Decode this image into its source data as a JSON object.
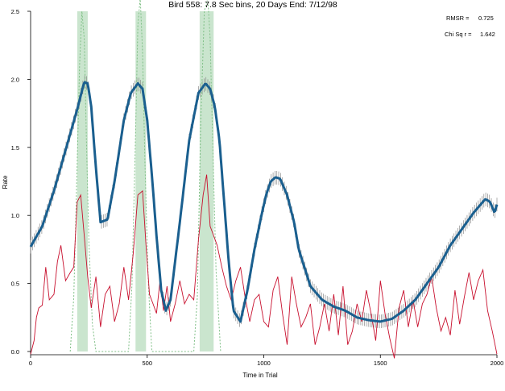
{
  "chart_data": {
    "type": "line",
    "title": "Bird 558: 7.8 Sec bins, 20 Days End: 7/12/98",
    "xlabel": "Time in Trial",
    "ylabel": "Rate",
    "xlim": [
      0,
      2000
    ],
    "ylim": [
      0,
      2.5
    ],
    "x_ticks": [
      {
        "value": 0,
        "label": "0"
      },
      {
        "value": 500,
        "label": "500"
      },
      {
        "value": 1000,
        "label": "1000"
      },
      {
        "value": 1500,
        "label": "1500"
      },
      {
        "value": 2000,
        "label": "2000"
      }
    ],
    "y_ticks": [
      {
        "value": 0,
        "label": "0.0"
      },
      {
        "value": 0.5,
        "label": "0.5"
      },
      {
        "value": 1.0,
        "label": "1.0"
      },
      {
        "value": 1.5,
        "label": "1.5"
      },
      {
        "value": 2.0,
        "label": "2.0"
      },
      {
        "value": 2.5,
        "label": "2.5"
      }
    ],
    "stats": [
      {
        "label": "RMSR =",
        "value": "0.725"
      },
      {
        "label": "Chi Sq r =",
        "value": "1.642"
      }
    ],
    "shaded_regions": [
      {
        "x0": 200,
        "x1": 245,
        "color": "#9fd0a6"
      },
      {
        "x0": 450,
        "x1": 495,
        "color": "#9fd0a6"
      },
      {
        "x0": 725,
        "x1": 785,
        "color": "#9fd0a6"
      }
    ],
    "error_band_halfwidth": 0.05,
    "series": [
      {
        "role": "fit",
        "color": "#1a5f8f",
        "x": [
          0,
          50,
          100,
          150,
          200,
          230,
          245,
          260,
          280,
          300,
          330,
          360,
          400,
          430,
          460,
          480,
          500,
          520,
          540,
          560,
          580,
          600,
          640,
          680,
          720,
          750,
          770,
          790,
          810,
          830,
          850,
          870,
          900,
          930,
          960,
          990,
          1010,
          1030,
          1050,
          1070,
          1100,
          1130,
          1150,
          1200,
          1250,
          1300,
          1350,
          1400,
          1450,
          1500,
          1550,
          1600,
          1650,
          1700,
          1750,
          1800,
          1850,
          1900,
          1950,
          1970,
          1990,
          2000
        ],
        "y": [
          0.77,
          0.92,
          1.18,
          1.48,
          1.78,
          1.98,
          1.97,
          1.8,
          1.35,
          0.95,
          0.97,
          1.25,
          1.7,
          1.9,
          1.97,
          1.93,
          1.7,
          1.3,
          0.85,
          0.45,
          0.3,
          0.38,
          0.95,
          1.55,
          1.9,
          1.97,
          1.93,
          1.8,
          1.55,
          1.1,
          0.65,
          0.3,
          0.22,
          0.45,
          0.75,
          1.0,
          1.15,
          1.25,
          1.28,
          1.27,
          1.15,
          0.95,
          0.75,
          0.48,
          0.38,
          0.33,
          0.3,
          0.25,
          0.23,
          0.22,
          0.24,
          0.3,
          0.38,
          0.5,
          0.62,
          0.78,
          0.9,
          1.02,
          1.12,
          1.1,
          1.02,
          1.08
        ]
      },
      {
        "role": "observed",
        "color": "#c8102e",
        "x": [
          0,
          15,
          25,
          35,
          50,
          65,
          80,
          100,
          115,
          130,
          150,
          170,
          185,
          200,
          215,
          230,
          245,
          260,
          280,
          300,
          320,
          340,
          360,
          380,
          400,
          420,
          440,
          460,
          480,
          495,
          510,
          525,
          540,
          555,
          570,
          585,
          600,
          620,
          640,
          660,
          680,
          700,
          720,
          740,
          755,
          770,
          785,
          800,
          820,
          840,
          860,
          880,
          900,
          920,
          940,
          960,
          980,
          1000,
          1020,
          1040,
          1060,
          1080,
          1100,
          1120,
          1140,
          1160,
          1180,
          1200,
          1220,
          1240,
          1260,
          1280,
          1300,
          1320,
          1340,
          1360,
          1380,
          1400,
          1420,
          1440,
          1460,
          1480,
          1500,
          1520,
          1540,
          1560,
          1580,
          1600,
          1620,
          1640,
          1660,
          1680,
          1700,
          1720,
          1740,
          1760,
          1780,
          1800,
          1820,
          1840,
          1860,
          1880,
          1900,
          1920,
          1940,
          1960,
          1980,
          2000
        ],
        "y": [
          -0.02,
          0.08,
          0.25,
          0.32,
          0.34,
          0.62,
          0.38,
          0.42,
          0.66,
          0.78,
          0.52,
          0.58,
          0.62,
          1.1,
          1.15,
          0.85,
          0.55,
          0.32,
          0.55,
          0.18,
          0.42,
          0.48,
          0.22,
          0.35,
          0.62,
          0.38,
          0.72,
          1.15,
          1.18,
          0.78,
          0.42,
          0.35,
          0.28,
          0.52,
          0.3,
          0.48,
          0.22,
          0.35,
          0.52,
          0.35,
          0.42,
          0.38,
          0.82,
          1.15,
          1.3,
          0.92,
          0.85,
          0.78,
          0.62,
          0.48,
          0.38,
          0.52,
          0.62,
          0.4,
          0.22,
          0.38,
          0.42,
          0.22,
          0.18,
          0.45,
          0.55,
          0.28,
          0.05,
          0.55,
          0.35,
          0.18,
          0.25,
          0.35,
          0.05,
          0.18,
          0.35,
          0.15,
          0.42,
          0.12,
          0.48,
          0.05,
          0.15,
          0.35,
          0.22,
          0.45,
          0.28,
          0.08,
          0.52,
          0.28,
          0.1,
          -0.05,
          0.32,
          0.45,
          0.18,
          0.38,
          0.18,
          0.35,
          0.42,
          0.55,
          0.32,
          0.15,
          0.25,
          0.12,
          0.45,
          0.2,
          0.4,
          0.58,
          0.38,
          0.52,
          0.6,
          0.3,
          0.15,
          -0.02
        ]
      },
      {
        "role": "model-peaks",
        "color": "#7fbf86",
        "dashed": true,
        "x": [
          170,
          185,
          200,
          210,
          220,
          230,
          240,
          250,
          265,
          280,
          420,
          435,
          450,
          460,
          470,
          480,
          490,
          505,
          520,
          700,
          715,
          730,
          745,
          760,
          770,
          780,
          795,
          815
        ],
        "y": [
          0.0,
          0.4,
          1.4,
          2.1,
          2.5,
          2.3,
          1.5,
          0.8,
          0.2,
          0.0,
          0.0,
          0.5,
          1.6,
          2.4,
          2.6,
          2.2,
          1.4,
          0.5,
          0.0,
          0.0,
          0.4,
          1.7,
          2.5,
          2.6,
          2.3,
          1.6,
          0.6,
          0.0
        ]
      }
    ]
  }
}
